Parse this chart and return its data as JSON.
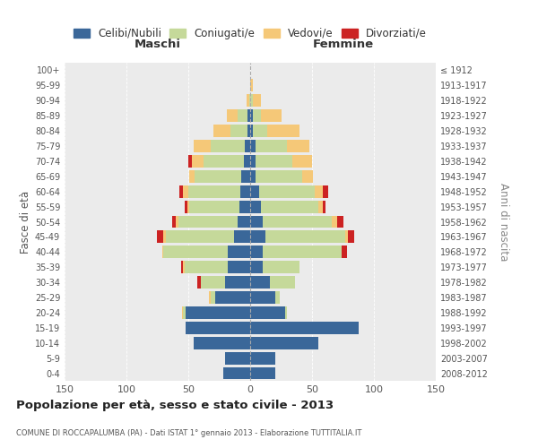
{
  "age_groups": [
    "0-4",
    "5-9",
    "10-14",
    "15-19",
    "20-24",
    "25-29",
    "30-34",
    "35-39",
    "40-44",
    "45-49",
    "50-54",
    "55-59",
    "60-64",
    "65-69",
    "70-74",
    "75-79",
    "80-84",
    "85-89",
    "90-94",
    "95-99",
    "100+"
  ],
  "birth_years": [
    "2008-2012",
    "2003-2007",
    "1998-2002",
    "1993-1997",
    "1988-1992",
    "1983-1987",
    "1978-1982",
    "1973-1977",
    "1968-1972",
    "1963-1967",
    "1958-1962",
    "1953-1957",
    "1948-1952",
    "1943-1947",
    "1938-1942",
    "1933-1937",
    "1928-1932",
    "1923-1927",
    "1918-1922",
    "1913-1917",
    "≤ 1912"
  ],
  "maschi": {
    "celibi": [
      22,
      20,
      46,
      52,
      52,
      28,
      20,
      18,
      18,
      13,
      10,
      9,
      8,
      7,
      5,
      4,
      2,
      2,
      0,
      0,
      0
    ],
    "coniugati": [
      0,
      0,
      0,
      0,
      2,
      4,
      20,
      35,
      52,
      55,
      48,
      40,
      42,
      38,
      33,
      28,
      14,
      8,
      1,
      0,
      0
    ],
    "vedove": [
      0,
      0,
      0,
      0,
      1,
      1,
      0,
      1,
      1,
      2,
      2,
      2,
      4,
      4,
      9,
      14,
      14,
      9,
      2,
      0,
      0
    ],
    "divorziate": [
      0,
      0,
      0,
      0,
      0,
      0,
      3,
      2,
      0,
      5,
      3,
      2,
      3,
      0,
      3,
      0,
      0,
      0,
      0,
      0,
      0
    ]
  },
  "femmine": {
    "nubili": [
      20,
      20,
      55,
      88,
      28,
      20,
      16,
      10,
      10,
      12,
      10,
      9,
      7,
      4,
      4,
      4,
      2,
      2,
      0,
      0,
      0
    ],
    "coniugate": [
      0,
      0,
      0,
      0,
      2,
      4,
      20,
      30,
      64,
      65,
      56,
      46,
      45,
      38,
      30,
      26,
      12,
      7,
      2,
      0,
      0
    ],
    "vedove": [
      0,
      0,
      0,
      0,
      0,
      0,
      0,
      0,
      0,
      2,
      4,
      4,
      7,
      9,
      16,
      18,
      26,
      16,
      7,
      2,
      0
    ],
    "divorziate": [
      0,
      0,
      0,
      0,
      0,
      0,
      0,
      0,
      4,
      5,
      5,
      2,
      4,
      0,
      0,
      0,
      0,
      0,
      0,
      0,
      0
    ]
  },
  "colors": {
    "celibi_nubili": "#3a6799",
    "coniugati": "#c5d99a",
    "vedove": "#f5c878",
    "divorziate": "#cc2222"
  },
  "xlim": 150,
  "xlabel_maschi": "Maschi",
  "xlabel_femmine": "Femmine",
  "ylabel_left": "Fasce di età",
  "ylabel_right": "Anni di nascita",
  "title": "Popolazione per età, sesso e stato civile - 2013",
  "subtitle": "COMUNE DI ROCCAPALUMBA (PA) - Dati ISTAT 1° gennaio 2013 - Elaborazione TUTTITALIA.IT",
  "legend_labels": [
    "Celibi/Nubili",
    "Coniugati/e",
    "Vedovi/e",
    "Divorziati/e"
  ]
}
